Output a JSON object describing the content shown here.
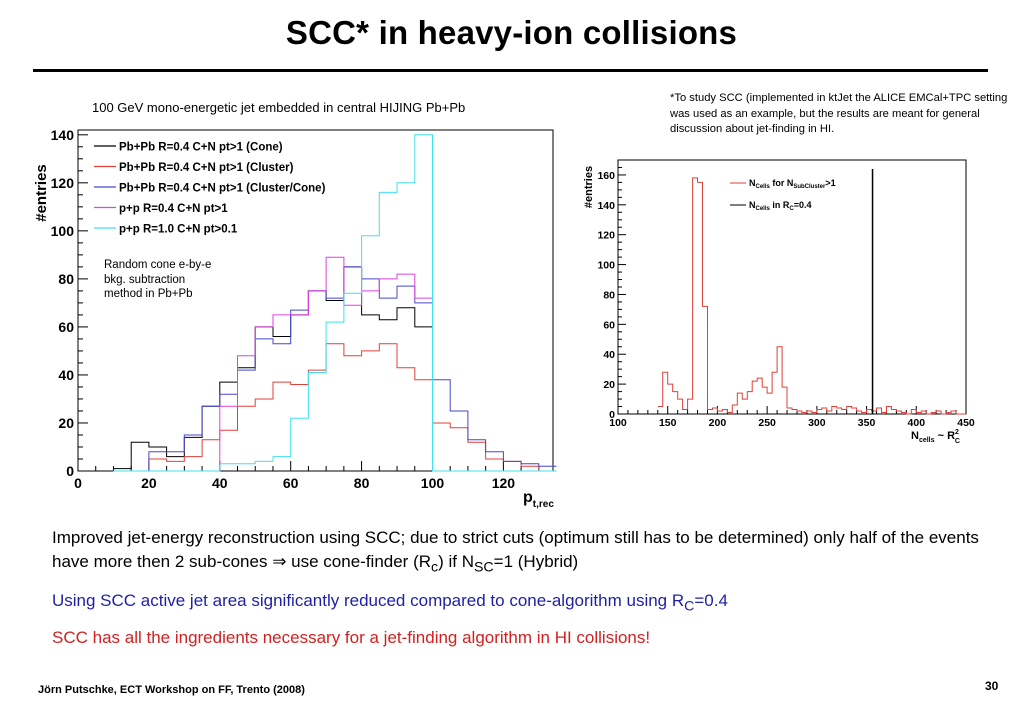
{
  "slide": {
    "title": "SCC* in heavy-ion collisions",
    "left_caption": "100 GeV mono-energetic jet embedded in central HIJING Pb+Pb",
    "footnote": "*To study SCC (implemented in ktJet the ALICE EMCal+TPC setting was used as an example, but the results are meant for general discussion about jet-finding in HI.",
    "left_plot_text": [
      "Random cone e-by-e",
      "bkg. subtraction",
      "method in Pb+Pb"
    ],
    "bullet1": {
      "a": "Improved jet-energy reconstruction using SCC; due to strict cuts (optimum still has to be determined) only half of the events have more then 2 sub-cones ",
      "arrow": "⇒",
      "b": " use cone-finder (R",
      "c_sub": "c",
      "d": ") if N",
      "e_sub": "SC",
      "f": "=1 (Hybrid)"
    },
    "bullet2": {
      "a": "Using SCC active jet area significantly reduced compared to cone-algorithm using R",
      "sub": "C",
      "b": "=0.4"
    },
    "bullet3": "SCC has all the ingredients necessary for a jet-finding algorithm in HI collisions!",
    "footer": "Jörn Putschke, ECT Workshop on FF, Trento (2008)",
    "page_number": "30"
  },
  "chart_data": [
    {
      "type": "line",
      "xlabel": "p",
      "xlabel_sub": "t,rec",
      "ylabel": "#entries",
      "xlim": [
        0,
        134
      ],
      "ylim": [
        0,
        142
      ],
      "xticks": [
        0,
        20,
        40,
        60,
        80,
        100,
        120
      ],
      "yticks": [
        0,
        20,
        40,
        60,
        80,
        100,
        120,
        140
      ],
      "legend_position": "top-left",
      "bin_width": 5,
      "x": [
        10,
        15,
        20,
        25,
        30,
        35,
        40,
        45,
        50,
        55,
        60,
        65,
        70,
        75,
        80,
        85,
        90,
        95,
        100,
        105,
        110,
        115,
        120,
        125,
        130
      ],
      "series": [
        {
          "name": "Pb+Pb R=0.4 C+N pt>1 (Cone)",
          "color": "#000000",
          "values": [
            1,
            12,
            10,
            6,
            14,
            27,
            37,
            43,
            60,
            56,
            65,
            75,
            71,
            85,
            65,
            63,
            68,
            60,
            0,
            0,
            0,
            0,
            0,
            0,
            0
          ]
        },
        {
          "name": "Pb+Pb R=0.4 C+N pt>1 (Cluster)",
          "color": "#e0403a",
          "values": [
            0,
            0,
            5,
            4,
            6,
            13,
            17,
            27,
            30,
            37,
            36,
            42,
            53,
            48,
            50,
            53,
            43,
            38,
            20,
            18,
            12,
            5,
            4,
            2,
            0
          ]
        },
        {
          "name": "Pb+Pb R=0.4 C+N pt>1 (Cluster/Cone)",
          "color": "#4646cf",
          "values": [
            0,
            0,
            8,
            8,
            15,
            27,
            32,
            42,
            55,
            53,
            67,
            75,
            72,
            85,
            80,
            72,
            77,
            70,
            38,
            25,
            13,
            8,
            4,
            3,
            2
          ]
        },
        {
          "name": "p+p R=0.4 C+N pt>1",
          "color": "#e040e0",
          "values": [
            0,
            0,
            0,
            0,
            0,
            0,
            27,
            48,
            60,
            65,
            65,
            75,
            89,
            69,
            75,
            80,
            82,
            72,
            0,
            0,
            0,
            0,
            0,
            0,
            0
          ]
        },
        {
          "name": "p+p R=1.0 C+N pt>0.1",
          "color": "#40e0f0",
          "values": [
            0,
            0,
            0,
            0,
            0,
            0,
            3,
            3,
            4,
            6,
            22,
            41,
            62,
            74,
            98,
            116,
            120,
            140,
            0,
            0,
            0,
            0,
            0,
            0,
            0
          ]
        }
      ]
    },
    {
      "type": "line",
      "xlabel": "N",
      "xlabel_sub": "cells",
      "xlabel_rest": " ~ R",
      "xlabel_sup": "2",
      "xlabel_sub2": "C",
      "ylabel": "#entries",
      "xlim": [
        100,
        450
      ],
      "ylim": [
        0,
        170
      ],
      "xticks": [
        100,
        150,
        200,
        250,
        300,
        350,
        400,
        450
      ],
      "yticks": [
        0,
        20,
        40,
        60,
        80,
        100,
        120,
        140,
        160
      ],
      "legend_position": "top-right",
      "series": [
        {
          "name_main": "N",
          "name_sub": "Cells",
          "name_mid": " for N",
          "name_sub2": "SubCluster",
          "name_end": ">1",
          "color": "#e0403a",
          "bin_width": 5,
          "x": [
            140,
            145,
            150,
            155,
            160,
            165,
            170,
            175,
            180,
            185,
            190,
            195,
            200,
            205,
            210,
            215,
            220,
            225,
            230,
            235,
            240,
            245,
            250,
            255,
            260,
            265,
            270,
            275,
            280,
            285,
            290,
            295,
            300,
            305,
            310,
            315,
            320,
            325,
            330,
            335,
            340,
            345,
            350,
            355,
            360,
            365,
            370,
            375,
            380,
            385,
            390,
            395,
            400,
            405,
            410,
            415,
            420,
            425,
            430,
            435,
            440,
            445
          ],
          "values": [
            5,
            28,
            20,
            15,
            10,
            3,
            10,
            158,
            155,
            72,
            3,
            4,
            2,
            3,
            1,
            6,
            14,
            10,
            15,
            22,
            24,
            18,
            14,
            28,
            45,
            18,
            4,
            3,
            2,
            1,
            2,
            1,
            3,
            4,
            2,
            5,
            4,
            3,
            5,
            4,
            2,
            1,
            3,
            2,
            4,
            1,
            5,
            3,
            2,
            1,
            0,
            3,
            1,
            2,
            0,
            1,
            2,
            0,
            1,
            2,
            0,
            0
          ]
        },
        {
          "name_main": "N",
          "name_sub": "Cells",
          "name_mid": " in R",
          "name_sub2": "C",
          "name_end": "=0.4",
          "color": "#000000",
          "x": [
            356
          ],
          "values": [
            164
          ]
        }
      ]
    }
  ]
}
